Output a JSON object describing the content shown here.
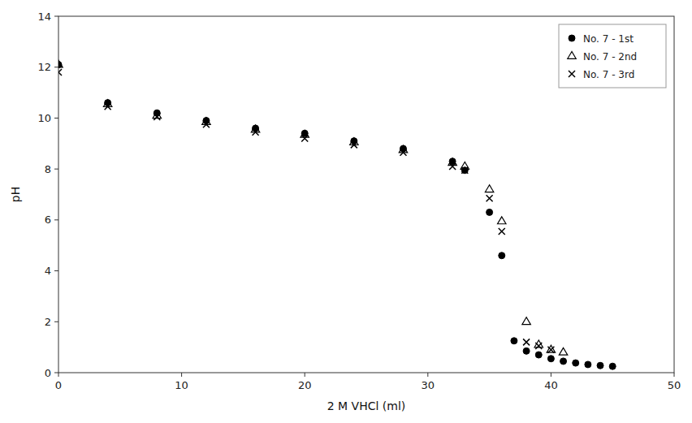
{
  "chart_data": {
    "type": "scatter",
    "x_label": "2 M VHCl (ml)",
    "y_label": "pH",
    "xlim": [
      0,
      50
    ],
    "ylim": [
      0,
      14
    ],
    "xticks": [
      0,
      10,
      20,
      30,
      40,
      50
    ],
    "yticks": [
      0,
      2,
      4,
      6,
      8,
      10,
      12,
      14
    ],
    "grid": false,
    "legend": "upper right",
    "series": [
      {
        "name": "No. 7 - 1st",
        "color": "#000000",
        "marker": "circle",
        "x": [
          0,
          4,
          8,
          12,
          16,
          20,
          24,
          28,
          32,
          33,
          35,
          36,
          37,
          38,
          39,
          40,
          41,
          42,
          43,
          44,
          45
        ],
        "values": [
          12.1,
          10.6,
          10.2,
          9.9,
          9.6,
          9.4,
          9.1,
          8.8,
          8.3,
          7.95,
          6.3,
          4.6,
          1.25,
          0.85,
          0.7,
          0.55,
          0.45,
          0.38,
          0.32,
          0.28,
          0.25
        ]
      },
      {
        "name": "No. 7 - 2nd",
        "color": "#000000",
        "marker": "triangle-open",
        "x": [
          0,
          4,
          8,
          12,
          16,
          20,
          24,
          28,
          32,
          33,
          35,
          36,
          38,
          39,
          40,
          41
        ],
        "values": [
          12.1,
          10.55,
          10.1,
          9.85,
          9.55,
          9.35,
          9.05,
          8.75,
          8.25,
          8.1,
          7.2,
          5.95,
          2.0,
          1.1,
          0.9,
          0.8
        ]
      },
      {
        "name": "No. 7 - 3rd",
        "color": "#000000",
        "marker": "x",
        "x": [
          0,
          4,
          8,
          12,
          16,
          20,
          24,
          28,
          32,
          33,
          35,
          36,
          38,
          39,
          40
        ],
        "values": [
          11.8,
          10.45,
          10.05,
          9.75,
          9.45,
          9.2,
          8.95,
          8.65,
          8.1,
          7.95,
          6.85,
          5.55,
          1.2,
          1.05,
          0.9
        ]
      }
    ]
  }
}
